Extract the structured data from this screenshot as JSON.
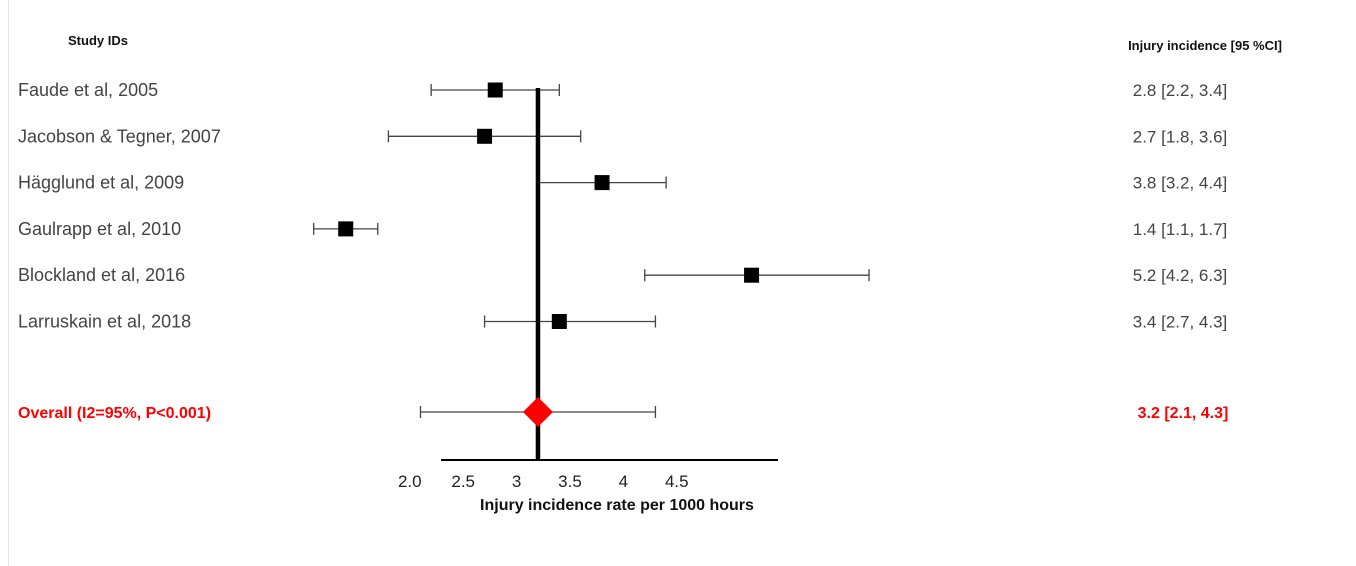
{
  "chart_data": {
    "type": "forest",
    "headers": {
      "studies": "Study IDs",
      "estimate": "Injury incidence [95 %CI]"
    },
    "studies": [
      {
        "label": "Faude et al, 2005",
        "estimate": 2.8,
        "lower": 2.2,
        "upper": 3.4,
        "ci_text": "2.8 [2.2, 3.4]"
      },
      {
        "label": "Jacobson & Tegner, 2007",
        "estimate": 2.7,
        "lower": 1.8,
        "upper": 3.6,
        "ci_text": "2.7 [1.8, 3.6]"
      },
      {
        "label": "Hägglund et al, 2009",
        "estimate": 3.8,
        "lower": 3.2,
        "upper": 4.4,
        "ci_text": "3.8 [3.2, 4.4]"
      },
      {
        "label": "Gaulrapp et al, 2010",
        "estimate": 1.4,
        "lower": 1.1,
        "upper": 1.7,
        "ci_text": "1.4 [1.1, 1.7]"
      },
      {
        "label": "Blockland et al, 2016",
        "estimate": 5.2,
        "lower": 4.2,
        "upper": 6.3,
        "ci_text": "5.2 [4.2, 6.3]"
      },
      {
        "label": "Larruskain et al, 2018",
        "estimate": 3.4,
        "lower": 2.7,
        "upper": 4.3,
        "ci_text": "3.4 [2.7, 4.3]"
      }
    ],
    "overall": {
      "label": "Overall (I2=95%, P<0.001)",
      "estimate": 3.2,
      "lower": 2.1,
      "upper": 4.3,
      "ci_text": "3.2 [2.1, 4.3]"
    },
    "reference_line": 3.2,
    "x_ticks": [
      {
        "value": 2.0,
        "label": "2.0"
      },
      {
        "value": 2.5,
        "label": "2.5"
      },
      {
        "value": 3.0,
        "label": "3"
      },
      {
        "value": 3.5,
        "label": "3.5"
      },
      {
        "value": 4.0,
        "label": "4"
      },
      {
        "value": 4.5,
        "label": "4.5"
      }
    ],
    "xlim": [
      2.0,
      4.5
    ],
    "xlabel": "Injury incidence rate per 1000 hours",
    "colors": {
      "overall": "#ff0000",
      "marker": "#000000",
      "whisker": "#444444"
    }
  }
}
